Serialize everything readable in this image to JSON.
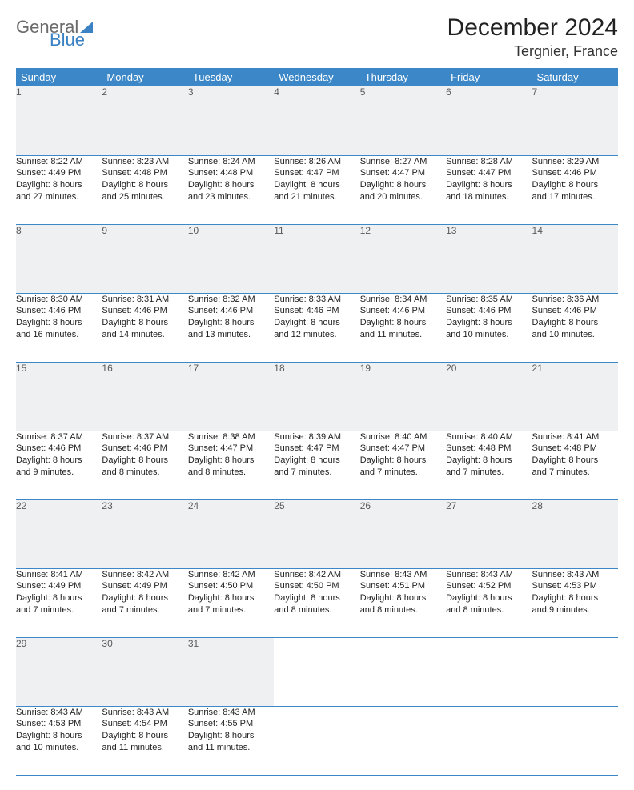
{
  "brand": {
    "part1": "General",
    "part2": "Blue"
  },
  "title": "December 2024",
  "location": "Tergnier, France",
  "colors": {
    "header_bg": "#3c87c7",
    "header_text": "#ffffff",
    "daynum_bg": "#eef0f1",
    "daynum_text": "#5a5a5a",
    "body_text": "#222222",
    "rule": "#3c87c7",
    "brand_gray": "#6b6b6b",
    "brand_blue": "#3b82c4"
  },
  "day_headers": [
    "Sunday",
    "Monday",
    "Tuesday",
    "Wednesday",
    "Thursday",
    "Friday",
    "Saturday"
  ],
  "weeks": [
    {
      "nums": [
        "1",
        "2",
        "3",
        "4",
        "5",
        "6",
        "7"
      ],
      "cells": [
        {
          "sunrise": "Sunrise: 8:22 AM",
          "sunset": "Sunset: 4:49 PM",
          "day1": "Daylight: 8 hours",
          "day2": "and 27 minutes."
        },
        {
          "sunrise": "Sunrise: 8:23 AM",
          "sunset": "Sunset: 4:48 PM",
          "day1": "Daylight: 8 hours",
          "day2": "and 25 minutes."
        },
        {
          "sunrise": "Sunrise: 8:24 AM",
          "sunset": "Sunset: 4:48 PM",
          "day1": "Daylight: 8 hours",
          "day2": "and 23 minutes."
        },
        {
          "sunrise": "Sunrise: 8:26 AM",
          "sunset": "Sunset: 4:47 PM",
          "day1": "Daylight: 8 hours",
          "day2": "and 21 minutes."
        },
        {
          "sunrise": "Sunrise: 8:27 AM",
          "sunset": "Sunset: 4:47 PM",
          "day1": "Daylight: 8 hours",
          "day2": "and 20 minutes."
        },
        {
          "sunrise": "Sunrise: 8:28 AM",
          "sunset": "Sunset: 4:47 PM",
          "day1": "Daylight: 8 hours",
          "day2": "and 18 minutes."
        },
        {
          "sunrise": "Sunrise: 8:29 AM",
          "sunset": "Sunset: 4:46 PM",
          "day1": "Daylight: 8 hours",
          "day2": "and 17 minutes."
        }
      ]
    },
    {
      "nums": [
        "8",
        "9",
        "10",
        "11",
        "12",
        "13",
        "14"
      ],
      "cells": [
        {
          "sunrise": "Sunrise: 8:30 AM",
          "sunset": "Sunset: 4:46 PM",
          "day1": "Daylight: 8 hours",
          "day2": "and 16 minutes."
        },
        {
          "sunrise": "Sunrise: 8:31 AM",
          "sunset": "Sunset: 4:46 PM",
          "day1": "Daylight: 8 hours",
          "day2": "and 14 minutes."
        },
        {
          "sunrise": "Sunrise: 8:32 AM",
          "sunset": "Sunset: 4:46 PM",
          "day1": "Daylight: 8 hours",
          "day2": "and 13 minutes."
        },
        {
          "sunrise": "Sunrise: 8:33 AM",
          "sunset": "Sunset: 4:46 PM",
          "day1": "Daylight: 8 hours",
          "day2": "and 12 minutes."
        },
        {
          "sunrise": "Sunrise: 8:34 AM",
          "sunset": "Sunset: 4:46 PM",
          "day1": "Daylight: 8 hours",
          "day2": "and 11 minutes."
        },
        {
          "sunrise": "Sunrise: 8:35 AM",
          "sunset": "Sunset: 4:46 PM",
          "day1": "Daylight: 8 hours",
          "day2": "and 10 minutes."
        },
        {
          "sunrise": "Sunrise: 8:36 AM",
          "sunset": "Sunset: 4:46 PM",
          "day1": "Daylight: 8 hours",
          "day2": "and 10 minutes."
        }
      ]
    },
    {
      "nums": [
        "15",
        "16",
        "17",
        "18",
        "19",
        "20",
        "21"
      ],
      "cells": [
        {
          "sunrise": "Sunrise: 8:37 AM",
          "sunset": "Sunset: 4:46 PM",
          "day1": "Daylight: 8 hours",
          "day2": "and 9 minutes."
        },
        {
          "sunrise": "Sunrise: 8:37 AM",
          "sunset": "Sunset: 4:46 PM",
          "day1": "Daylight: 8 hours",
          "day2": "and 8 minutes."
        },
        {
          "sunrise": "Sunrise: 8:38 AM",
          "sunset": "Sunset: 4:47 PM",
          "day1": "Daylight: 8 hours",
          "day2": "and 8 minutes."
        },
        {
          "sunrise": "Sunrise: 8:39 AM",
          "sunset": "Sunset: 4:47 PM",
          "day1": "Daylight: 8 hours",
          "day2": "and 7 minutes."
        },
        {
          "sunrise": "Sunrise: 8:40 AM",
          "sunset": "Sunset: 4:47 PM",
          "day1": "Daylight: 8 hours",
          "day2": "and 7 minutes."
        },
        {
          "sunrise": "Sunrise: 8:40 AM",
          "sunset": "Sunset: 4:48 PM",
          "day1": "Daylight: 8 hours",
          "day2": "and 7 minutes."
        },
        {
          "sunrise": "Sunrise: 8:41 AM",
          "sunset": "Sunset: 4:48 PM",
          "day1": "Daylight: 8 hours",
          "day2": "and 7 minutes."
        }
      ]
    },
    {
      "nums": [
        "22",
        "23",
        "24",
        "25",
        "26",
        "27",
        "28"
      ],
      "cells": [
        {
          "sunrise": "Sunrise: 8:41 AM",
          "sunset": "Sunset: 4:49 PM",
          "day1": "Daylight: 8 hours",
          "day2": "and 7 minutes."
        },
        {
          "sunrise": "Sunrise: 8:42 AM",
          "sunset": "Sunset: 4:49 PM",
          "day1": "Daylight: 8 hours",
          "day2": "and 7 minutes."
        },
        {
          "sunrise": "Sunrise: 8:42 AM",
          "sunset": "Sunset: 4:50 PM",
          "day1": "Daylight: 8 hours",
          "day2": "and 7 minutes."
        },
        {
          "sunrise": "Sunrise: 8:42 AM",
          "sunset": "Sunset: 4:50 PM",
          "day1": "Daylight: 8 hours",
          "day2": "and 8 minutes."
        },
        {
          "sunrise": "Sunrise: 8:43 AM",
          "sunset": "Sunset: 4:51 PM",
          "day1": "Daylight: 8 hours",
          "day2": "and 8 minutes."
        },
        {
          "sunrise": "Sunrise: 8:43 AM",
          "sunset": "Sunset: 4:52 PM",
          "day1": "Daylight: 8 hours",
          "day2": "and 8 minutes."
        },
        {
          "sunrise": "Sunrise: 8:43 AM",
          "sunset": "Sunset: 4:53 PM",
          "day1": "Daylight: 8 hours",
          "day2": "and 9 minutes."
        }
      ]
    },
    {
      "nums": [
        "29",
        "30",
        "31",
        "",
        "",
        "",
        ""
      ],
      "cells": [
        {
          "sunrise": "Sunrise: 8:43 AM",
          "sunset": "Sunset: 4:53 PM",
          "day1": "Daylight: 8 hours",
          "day2": "and 10 minutes."
        },
        {
          "sunrise": "Sunrise: 8:43 AM",
          "sunset": "Sunset: 4:54 PM",
          "day1": "Daylight: 8 hours",
          "day2": "and 11 minutes."
        },
        {
          "sunrise": "Sunrise: 8:43 AM",
          "sunset": "Sunset: 4:55 PM",
          "day1": "Daylight: 8 hours",
          "day2": "and 11 minutes."
        },
        null,
        null,
        null,
        null
      ]
    }
  ]
}
